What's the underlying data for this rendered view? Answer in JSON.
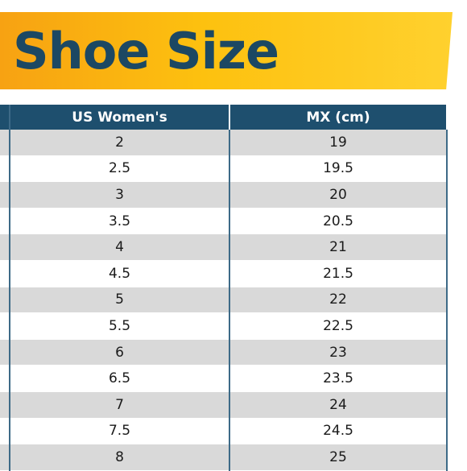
{
  "title": "Shoe Size",
  "table": {
    "headers": [
      "US Women's",
      "MX (cm)"
    ],
    "rows": [
      [
        "2",
        "19"
      ],
      [
        "2.5",
        "19.5"
      ],
      [
        "3",
        "20"
      ],
      [
        "3.5",
        "20.5"
      ],
      [
        "4",
        "21"
      ],
      [
        "4.5",
        "21.5"
      ],
      [
        "5",
        "22"
      ],
      [
        "5.5",
        "22.5"
      ],
      [
        "6",
        "23"
      ],
      [
        "6.5",
        "23.5"
      ],
      [
        "7",
        "24"
      ],
      [
        "7.5",
        "24.5"
      ],
      [
        "8",
        "25"
      ]
    ]
  },
  "colors": {
    "banner": "#fdc10f",
    "title": "#1c4863",
    "header_bg": "#1e4f6e",
    "stripe": "#d9d9d9"
  }
}
